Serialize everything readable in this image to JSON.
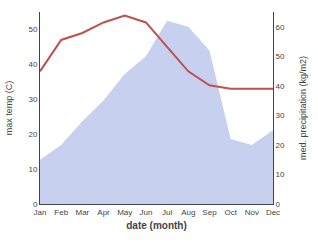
{
  "chart_data": {
    "type": "line",
    "xlabel": "date (month)",
    "ylabel": "max temp (C)",
    "y2label": "med. precipitation (kg/m2)",
    "categories": [
      "Jan",
      "Feb",
      "Mar",
      "Apr",
      "May",
      "Jun",
      "Jul",
      "Aug",
      "Sep",
      "Oct",
      "Nov",
      "Dec"
    ],
    "series": [
      {
        "type": "line",
        "color": "#c0504d",
        "values": [
          38,
          47,
          49,
          52,
          54,
          52,
          45,
          38,
          34,
          33,
          33,
          33
        ]
      },
      {
        "type": "area",
        "color": "#c8d0f0",
        "axis": "y2",
        "values": [
          15,
          20,
          28,
          35,
          44,
          50,
          62,
          60,
          52,
          22,
          20,
          25
        ]
      }
    ],
    "ylim": [
      0,
      55
    ],
    "yticks": [
      0,
      10,
      20,
      30,
      40,
      50
    ],
    "y2lim": [
      0,
      65
    ],
    "y2ticks": [
      0,
      10,
      20,
      30,
      40,
      50,
      60
    ],
    "grid": false,
    "legend": false
  }
}
